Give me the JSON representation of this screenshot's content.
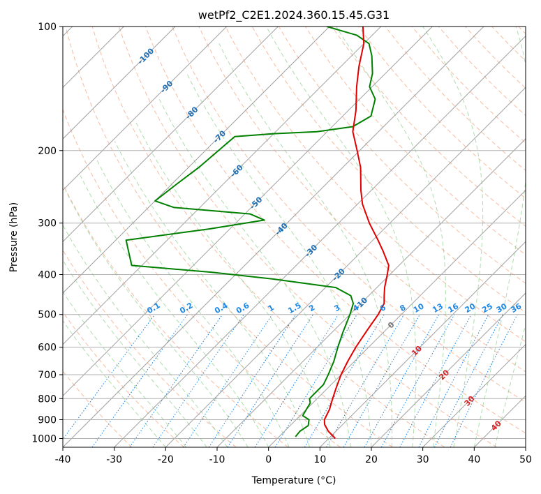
{
  "chart_data": {
    "type": "line",
    "title": "wetPf2_C2E1.2024.360.15.45.G31",
    "xlabel": "Temperature (°C)",
    "ylabel": "Pressure (hPa)",
    "xlim": [
      -40,
      50
    ],
    "ylim": [
      1050,
      100
    ],
    "y_scale": "log",
    "x_ticks": [
      -40,
      -30,
      -20,
      -10,
      0,
      10,
      20,
      30,
      40,
      50
    ],
    "y_ticks": [
      100,
      200,
      300,
      400,
      500,
      600,
      700,
      800,
      900,
      1000
    ],
    "grid": true,
    "skew": true,
    "colors": {
      "temperature": "#e00000",
      "dewpoint": "#008000",
      "isotherm": "#a0a0a0",
      "dry_adiabat": "#f4a582",
      "moist_adiabat": "#6bbf6b",
      "mixing_ratio": "#1e88e5",
      "isotherm_label": "#1f6fb5",
      "dry_adiabat_label": "#d62728"
    },
    "isotherm_labels": [
      "-100",
      "-90",
      "-80",
      "-70",
      "-60",
      "-50",
      "-40",
      "-30",
      "-20",
      "-10",
      "0",
      "10",
      "20",
      "30",
      "40"
    ],
    "mixing_ratio_labels": [
      "0.1",
      "0.2",
      "0.4",
      "0.6",
      "1",
      "1.5",
      "2",
      "3",
      "4",
      "6",
      "8",
      "10",
      "13",
      "16",
      "20",
      "25",
      "30",
      "36"
    ],
    "series": [
      {
        "name": "",
        "points": [
          {
            "p": 1000,
            "t": 11.3
          },
          {
            "p": 960,
            "t": 8.5
          },
          {
            "p": 925,
            "t": 6.5
          },
          {
            "p": 900,
            "t": 5.5
          },
          {
            "p": 850,
            "t": 4.5
          },
          {
            "p": 800,
            "t": 3.0
          },
          {
            "p": 750,
            "t": 1.5
          },
          {
            "p": 700,
            "t": 0.0
          },
          {
            "p": 650,
            "t": -1.3
          },
          {
            "p": 600,
            "t": -2.5
          },
          {
            "p": 550,
            "t": -3.5
          },
          {
            "p": 500,
            "t": -4.5
          },
          {
            "p": 470,
            "t": -5.5
          },
          {
            "p": 450,
            "t": -7.0
          },
          {
            "p": 430,
            "t": -8.5
          },
          {
            "p": 400,
            "t": -10.5
          },
          {
            "p": 380,
            "t": -12.0
          },
          {
            "p": 350,
            "t": -16.0
          },
          {
            "p": 330,
            "t": -19.0
          },
          {
            "p": 300,
            "t": -24.0
          },
          {
            "p": 270,
            "t": -29.0
          },
          {
            "p": 250,
            "t": -32.0
          },
          {
            "p": 220,
            "t": -36.5
          },
          {
            "p": 200,
            "t": -40.5
          },
          {
            "p": 180,
            "t": -45.0
          },
          {
            "p": 160,
            "t": -48.5
          },
          {
            "p": 140,
            "t": -53.0
          },
          {
            "p": 125,
            "t": -56.5
          },
          {
            "p": 110,
            "t": -60.0
          },
          {
            "p": 100,
            "t": -63.5
          }
        ]
      },
      {
        "name": "",
        "points": [
          {
            "p": 990,
            "t": 3.2
          },
          {
            "p": 960,
            "t": 3.0
          },
          {
            "p": 930,
            "t": 3.5
          },
          {
            "p": 900,
            "t": 2.5
          },
          {
            "p": 880,
            "t": 0.5
          },
          {
            "p": 850,
            "t": 0.0
          },
          {
            "p": 820,
            "t": -0.5
          },
          {
            "p": 800,
            "t": -1.5
          },
          {
            "p": 760,
            "t": -1.5
          },
          {
            "p": 740,
            "t": -1.5
          },
          {
            "p": 700,
            "t": -2.5
          },
          {
            "p": 650,
            "t": -4.0
          },
          {
            "p": 600,
            "t": -6.0
          },
          {
            "p": 550,
            "t": -8.0
          },
          {
            "p": 500,
            "t": -10.0
          },
          {
            "p": 470,
            "t": -11.5
          },
          {
            "p": 450,
            "t": -13.5
          },
          {
            "p": 430,
            "t": -18.0
          },
          {
            "p": 410,
            "t": -32.0
          },
          {
            "p": 395,
            "t": -45.0
          },
          {
            "p": 380,
            "t": -62.0
          },
          {
            "p": 330,
            "t": -68.0
          },
          {
            "p": 310,
            "t": -54.0
          },
          {
            "p": 295,
            "t": -45.0
          },
          {
            "p": 285,
            "t": -49.0
          },
          {
            "p": 275,
            "t": -65.0
          },
          {
            "p": 265,
            "t": -70.0
          },
          {
            "p": 240,
            "t": -69.0
          },
          {
            "p": 220,
            "t": -68.0
          },
          {
            "p": 185,
            "t": -67.0
          },
          {
            "p": 182,
            "t": -60.0
          },
          {
            "p": 180,
            "t": -52.0
          },
          {
            "p": 175,
            "t": -46.0
          },
          {
            "p": 165,
            "t": -44.5
          },
          {
            "p": 150,
            "t": -47.0
          },
          {
            "p": 140,
            "t": -50.5
          },
          {
            "p": 130,
            "t": -52.5
          },
          {
            "p": 118,
            "t": -56.0
          },
          {
            "p": 110,
            "t": -59.0
          },
          {
            "p": 105,
            "t": -63.0
          },
          {
            "p": 100,
            "t": -70.5
          }
        ]
      }
    ]
  }
}
